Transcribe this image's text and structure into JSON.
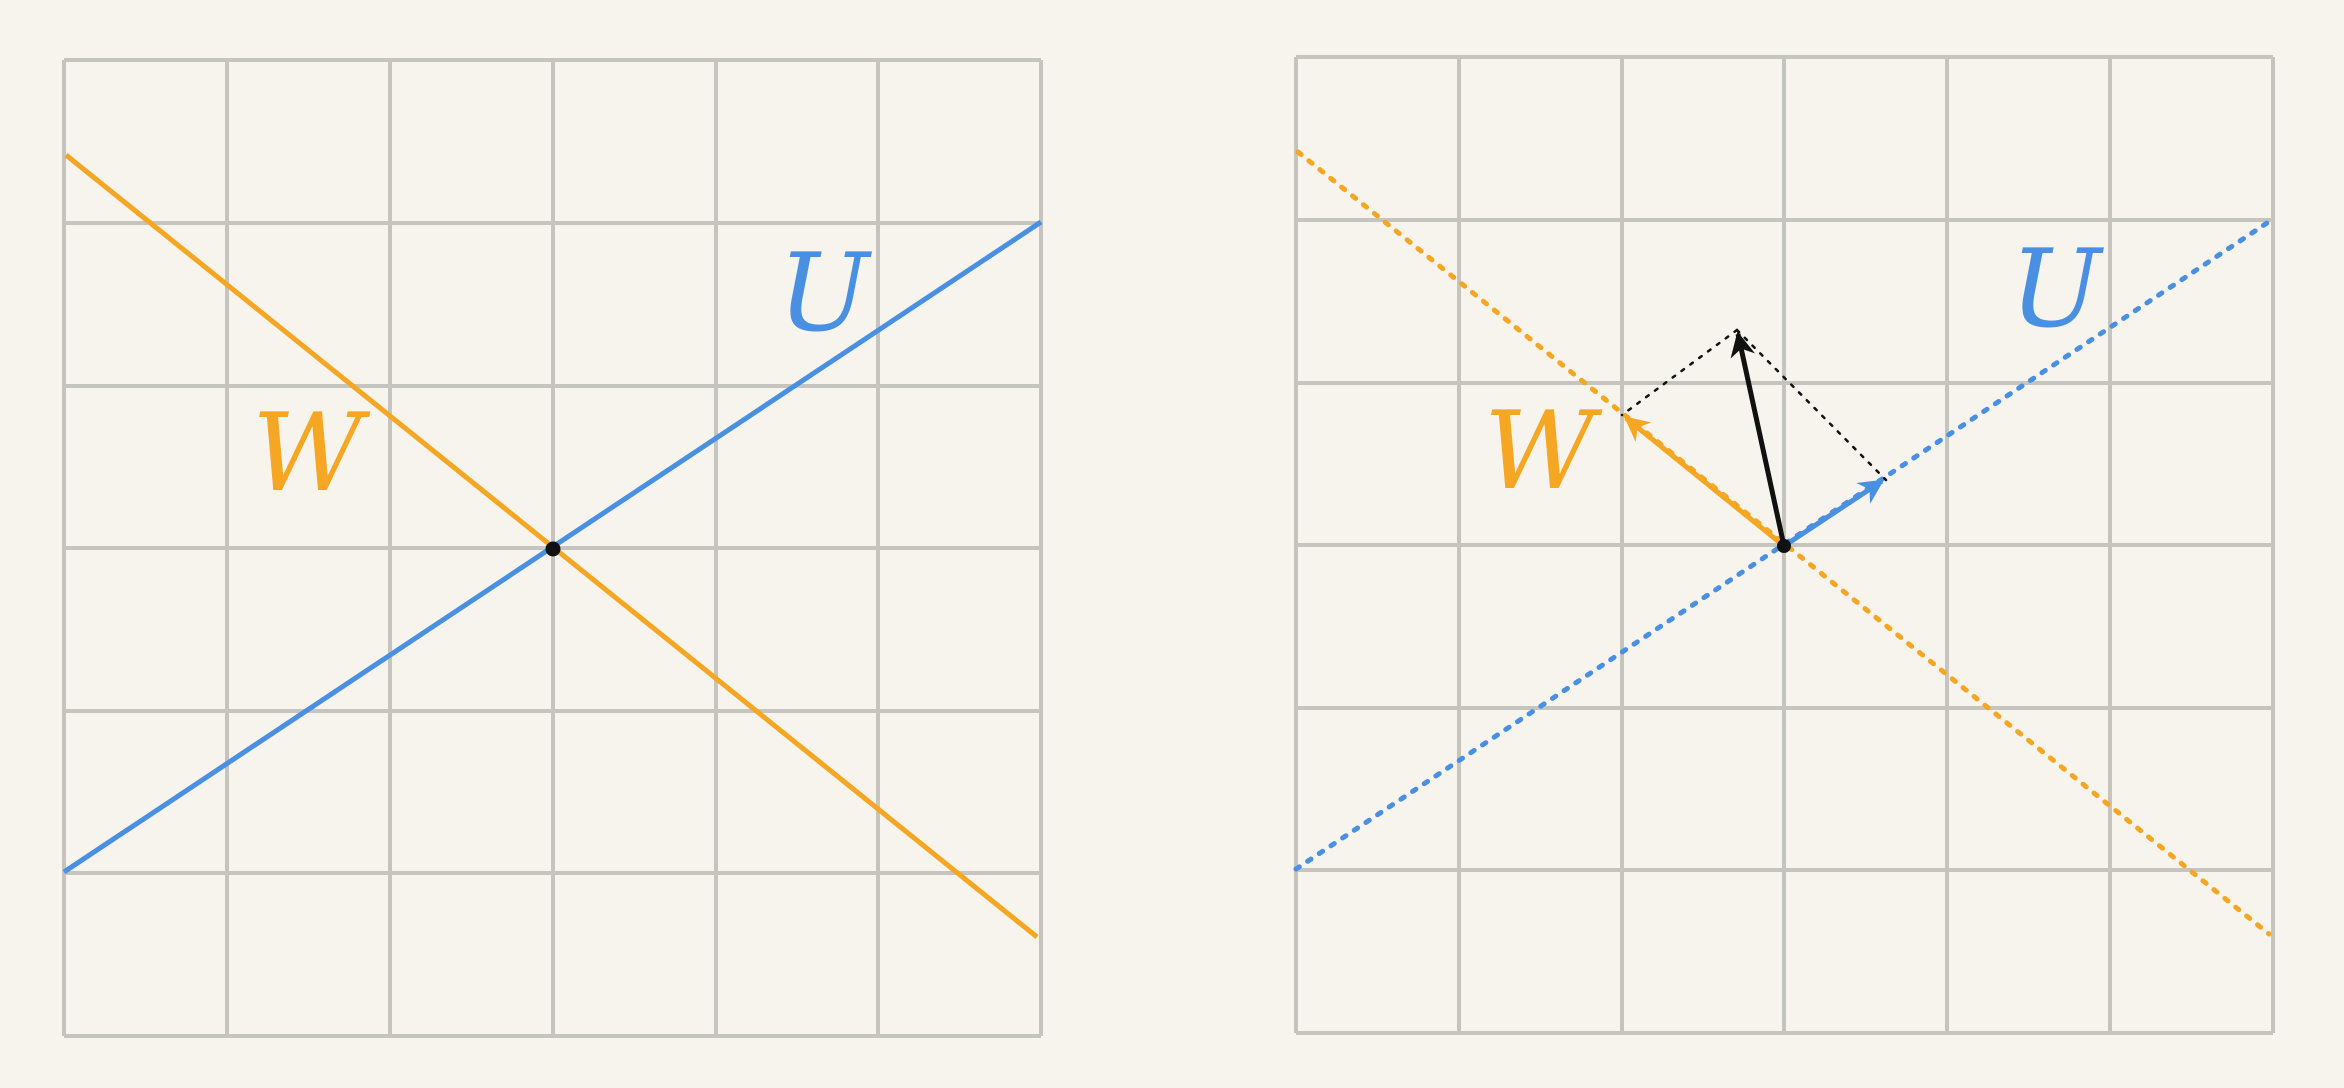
{
  "colors": {
    "background": "#f6f4ed",
    "grid": "#c6c4be",
    "U": "#4a90e2",
    "W": "#f5a623",
    "vector": "#111111"
  },
  "grid": {
    "cells": 6
  },
  "left_panel": {
    "label_U": "U",
    "label_W": "W",
    "line_U_style": "solid",
    "line_W_style": "solid"
  },
  "right_panel": {
    "label_U": "U",
    "label_W": "W",
    "line_U_style": "dotted",
    "line_W_style": "dotted",
    "vector_v": [
      -0.28,
      1.33
    ],
    "projection_U": [
      0.62,
      0.4
    ],
    "projection_W": [
      -1.0,
      0.79
    ]
  }
}
